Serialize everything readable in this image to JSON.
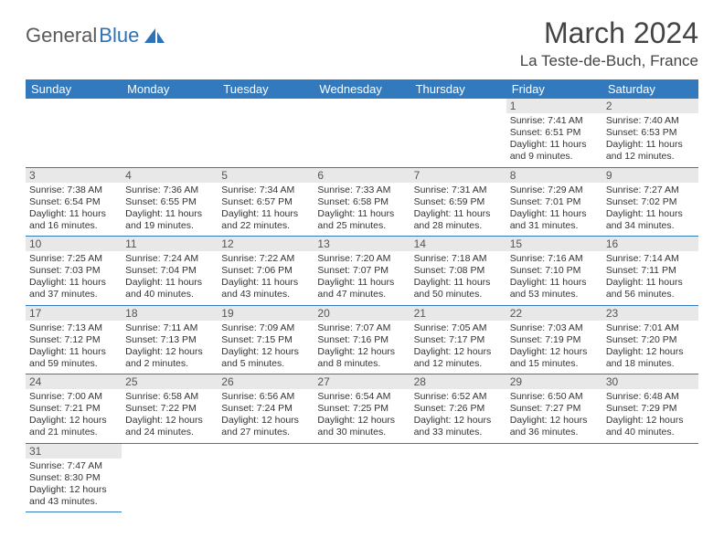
{
  "brand": {
    "part1": "General",
    "part2": "Blue"
  },
  "title": "March 2024",
  "location": "La Teste-de-Buch, France",
  "colors": {
    "headerBg": "#3279bd",
    "dayBg": "#e8e8e8",
    "rule": "#3279bd"
  },
  "weekdays": [
    "Sunday",
    "Monday",
    "Tuesday",
    "Wednesday",
    "Thursday",
    "Friday",
    "Saturday"
  ],
  "weeks": [
    [
      null,
      null,
      null,
      null,
      null,
      {
        "n": "1",
        "sr": "7:41 AM",
        "ss": "6:51 PM",
        "dl": "11 hours and 9 minutes."
      },
      {
        "n": "2",
        "sr": "7:40 AM",
        "ss": "6:53 PM",
        "dl": "11 hours and 12 minutes."
      }
    ],
    [
      {
        "n": "3",
        "sr": "7:38 AM",
        "ss": "6:54 PM",
        "dl": "11 hours and 16 minutes."
      },
      {
        "n": "4",
        "sr": "7:36 AM",
        "ss": "6:55 PM",
        "dl": "11 hours and 19 minutes."
      },
      {
        "n": "5",
        "sr": "7:34 AM",
        "ss": "6:57 PM",
        "dl": "11 hours and 22 minutes."
      },
      {
        "n": "6",
        "sr": "7:33 AM",
        "ss": "6:58 PM",
        "dl": "11 hours and 25 minutes."
      },
      {
        "n": "7",
        "sr": "7:31 AM",
        "ss": "6:59 PM",
        "dl": "11 hours and 28 minutes."
      },
      {
        "n": "8",
        "sr": "7:29 AM",
        "ss": "7:01 PM",
        "dl": "11 hours and 31 minutes."
      },
      {
        "n": "9",
        "sr": "7:27 AM",
        "ss": "7:02 PM",
        "dl": "11 hours and 34 minutes."
      }
    ],
    [
      {
        "n": "10",
        "sr": "7:25 AM",
        "ss": "7:03 PM",
        "dl": "11 hours and 37 minutes."
      },
      {
        "n": "11",
        "sr": "7:24 AM",
        "ss": "7:04 PM",
        "dl": "11 hours and 40 minutes."
      },
      {
        "n": "12",
        "sr": "7:22 AM",
        "ss": "7:06 PM",
        "dl": "11 hours and 43 minutes."
      },
      {
        "n": "13",
        "sr": "7:20 AM",
        "ss": "7:07 PM",
        "dl": "11 hours and 47 minutes."
      },
      {
        "n": "14",
        "sr": "7:18 AM",
        "ss": "7:08 PM",
        "dl": "11 hours and 50 minutes."
      },
      {
        "n": "15",
        "sr": "7:16 AM",
        "ss": "7:10 PM",
        "dl": "11 hours and 53 minutes."
      },
      {
        "n": "16",
        "sr": "7:14 AM",
        "ss": "7:11 PM",
        "dl": "11 hours and 56 minutes."
      }
    ],
    [
      {
        "n": "17",
        "sr": "7:13 AM",
        "ss": "7:12 PM",
        "dl": "11 hours and 59 minutes."
      },
      {
        "n": "18",
        "sr": "7:11 AM",
        "ss": "7:13 PM",
        "dl": "12 hours and 2 minutes."
      },
      {
        "n": "19",
        "sr": "7:09 AM",
        "ss": "7:15 PM",
        "dl": "12 hours and 5 minutes."
      },
      {
        "n": "20",
        "sr": "7:07 AM",
        "ss": "7:16 PM",
        "dl": "12 hours and 8 minutes."
      },
      {
        "n": "21",
        "sr": "7:05 AM",
        "ss": "7:17 PM",
        "dl": "12 hours and 12 minutes."
      },
      {
        "n": "22",
        "sr": "7:03 AM",
        "ss": "7:19 PM",
        "dl": "12 hours and 15 minutes."
      },
      {
        "n": "23",
        "sr": "7:01 AM",
        "ss": "7:20 PM",
        "dl": "12 hours and 18 minutes."
      }
    ],
    [
      {
        "n": "24",
        "sr": "7:00 AM",
        "ss": "7:21 PM",
        "dl": "12 hours and 21 minutes."
      },
      {
        "n": "25",
        "sr": "6:58 AM",
        "ss": "7:22 PM",
        "dl": "12 hours and 24 minutes."
      },
      {
        "n": "26",
        "sr": "6:56 AM",
        "ss": "7:24 PM",
        "dl": "12 hours and 27 minutes."
      },
      {
        "n": "27",
        "sr": "6:54 AM",
        "ss": "7:25 PM",
        "dl": "12 hours and 30 minutes."
      },
      {
        "n": "28",
        "sr": "6:52 AM",
        "ss": "7:26 PM",
        "dl": "12 hours and 33 minutes."
      },
      {
        "n": "29",
        "sr": "6:50 AM",
        "ss": "7:27 PM",
        "dl": "12 hours and 36 minutes."
      },
      {
        "n": "30",
        "sr": "6:48 AM",
        "ss": "7:29 PM",
        "dl": "12 hours and 40 minutes."
      }
    ],
    [
      {
        "n": "31",
        "sr": "7:47 AM",
        "ss": "8:30 PM",
        "dl": "12 hours and 43 minutes."
      },
      null,
      null,
      null,
      null,
      null,
      null
    ]
  ],
  "labels": {
    "sunrise": "Sunrise: ",
    "sunset": "Sunset: ",
    "daylight": "Daylight: "
  }
}
